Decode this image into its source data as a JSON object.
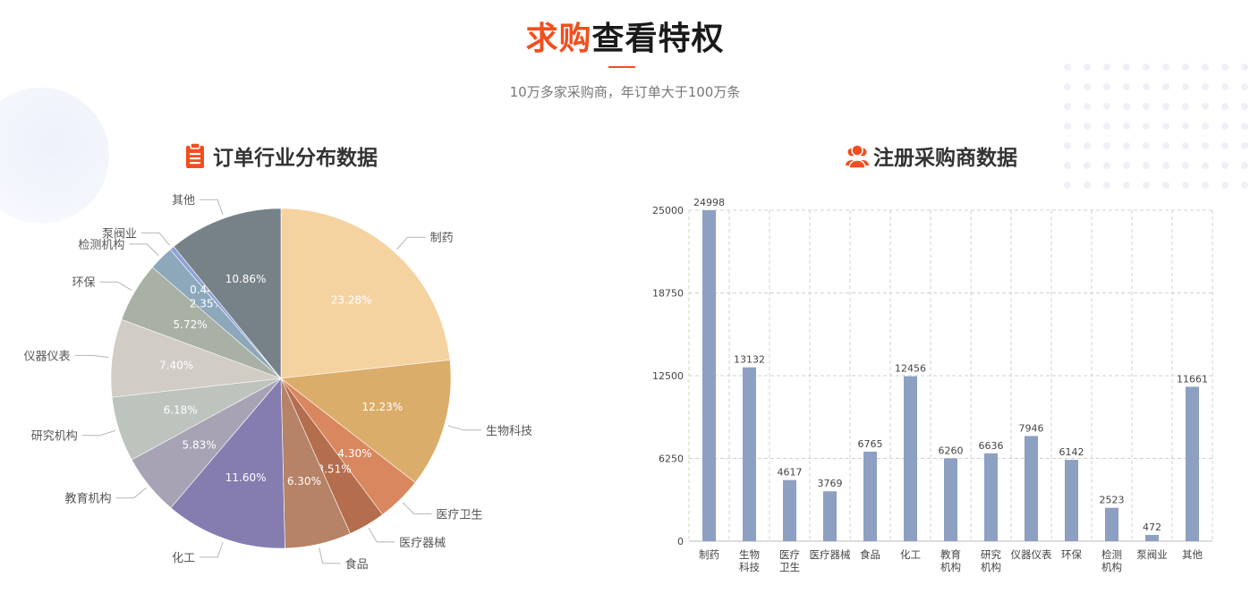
{
  "header": {
    "title_highlight": "求购",
    "title_rest": "查看特权",
    "subtitle": "10万多家采购商，年订单大于100万条"
  },
  "panels": {
    "left_title": "订单行业分布数据",
    "left_icon": "clipboard-icon",
    "right_title": "注册采购商数据",
    "right_icon": "users-icon"
  },
  "colors": {
    "accent": "#f24e1e",
    "bar": "#8da0c2"
  },
  "chart_data": [
    {
      "type": "pie",
      "title": "订单行业分布数据",
      "categories": [
        "制药",
        "生物科技",
        "医疗卫生",
        "医疗器械",
        "食品",
        "化工",
        "教育机构",
        "研究机构",
        "仪器仪表",
        "环保",
        "检测机构",
        "泵阀业",
        "其他"
      ],
      "values": [
        23.28,
        12.23,
        4.3,
        3.51,
        6.3,
        11.6,
        5.83,
        6.18,
        7.4,
        5.72,
        2.35,
        0.44,
        10.86
      ],
      "value_labels": [
        "23.28%",
        "12.23%",
        "4.30%",
        "3.51%",
        "6.30%",
        "11.60%",
        "5.83%",
        "6.18%",
        "7.40%",
        "5.72%",
        "2.35%",
        "0.44%",
        "10.86%"
      ],
      "colors": [
        "#f5d3a1",
        "#dbad6b",
        "#d9875e",
        "#b46d4d",
        "#b68366",
        "#857db0",
        "#a7a3b4",
        "#bcc4bd",
        "#d1ccc6",
        "#a9b1a6",
        "#8da8bb",
        "#8da2d6",
        "#778288"
      ],
      "start": "12 o'clock, clockwise"
    },
    {
      "type": "bar",
      "title": "注册采购商数据",
      "categories": [
        "制药",
        "生物\n科技",
        "医疗\n卫生",
        "医疗器械",
        "食品",
        "化工",
        "教育\n机构",
        "研究\n机构",
        "仪器仪表",
        "环保",
        "检测\n机构",
        "泵阀业",
        "其他"
      ],
      "values": [
        24998,
        13132,
        4617,
        3769,
        6765,
        12456,
        6260,
        6636,
        7946,
        6142,
        2523,
        472,
        11661
      ],
      "ylim": [
        0,
        25000
      ],
      "yticks": [
        0,
        6250,
        12500,
        18750,
        25000
      ],
      "grid": true,
      "xlabel": "",
      "ylabel": ""
    }
  ]
}
